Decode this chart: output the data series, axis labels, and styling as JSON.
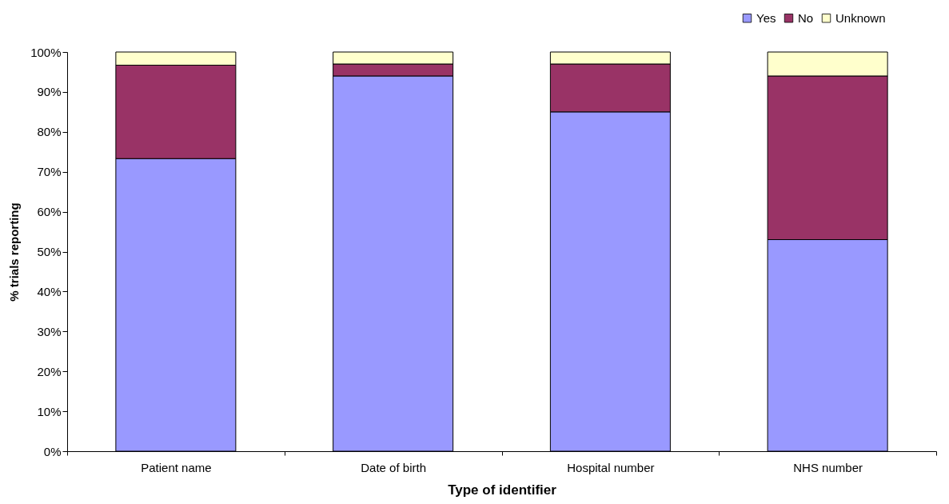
{
  "chart_data": {
    "type": "bar",
    "stacked": true,
    "xlabel": "Type of identifier",
    "ylabel": "% trials reporting",
    "categories": [
      "Patient name",
      "Date of birth",
      "Hospital number",
      "NHS number"
    ],
    "series": [
      {
        "name": "Yes",
        "color": "#9999ff",
        "values": [
          73.3,
          94,
          85,
          53
        ]
      },
      {
        "name": "No",
        "color": "#993366",
        "values": [
          23.4,
          3,
          12,
          41
        ]
      },
      {
        "name": "Unknown",
        "color": "#ffffcc",
        "values": [
          3.3,
          3,
          3,
          6
        ]
      }
    ],
    "ylim": [
      0,
      100
    ],
    "yticks": [
      {
        "value": 0,
        "label": "0%"
      },
      {
        "value": 10,
        "label": "10%"
      },
      {
        "value": 20,
        "label": "20%"
      },
      {
        "value": 30,
        "label": "30%"
      },
      {
        "value": 40,
        "label": "40%"
      },
      {
        "value": 50,
        "label": "50%"
      },
      {
        "value": 60,
        "label": "60%"
      },
      {
        "value": 70,
        "label": "70%"
      },
      {
        "value": 80,
        "label": "80%"
      },
      {
        "value": 90,
        "label": "90%"
      },
      {
        "value": 100,
        "label": "100%"
      }
    ],
    "grid": false,
    "legend": "top right"
  }
}
